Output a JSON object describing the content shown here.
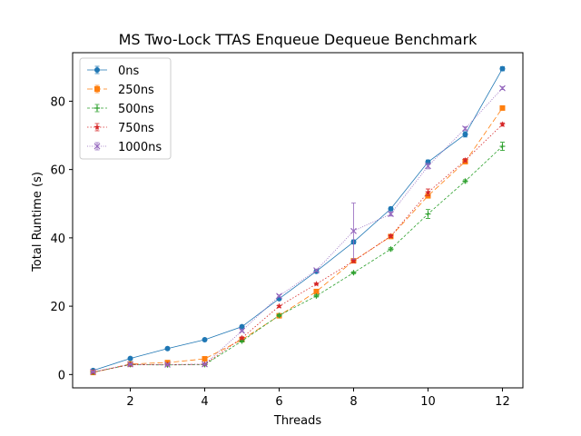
{
  "chart_data": {
    "type": "line",
    "title": "MS Two-Lock TTAS Enqueue Dequeue Benchmark",
    "xlabel": "Threads",
    "ylabel": "Total Runtime (s)",
    "xlim": [
      0.45,
      12.55
    ],
    "ylim": [
      -3.9,
      94.2
    ],
    "xticks": [
      2,
      4,
      6,
      8,
      10,
      12
    ],
    "yticks": [
      0,
      20,
      40,
      60,
      80
    ],
    "x": [
      1,
      2,
      3,
      4,
      5,
      6,
      7,
      8,
      9,
      10,
      11,
      12
    ],
    "legend_position": "upper-left",
    "series": [
      {
        "name": "0ns",
        "color": "#1f77b4",
        "marker": "circle",
        "dash": "",
        "values": [
          1.2,
          4.7,
          7.6,
          10.2,
          14.0,
          22.2,
          30.2,
          38.8,
          48.5,
          62.2,
          70.3,
          89.5
        ],
        "errors": [
          0.1,
          0.2,
          0.2,
          0.2,
          0.3,
          0.4,
          0.4,
          0.6,
          0.5,
          0.6,
          0.8,
          0.6
        ]
      },
      {
        "name": "250ns",
        "color": "#ff7f0e",
        "marker": "square",
        "dash": "6,3",
        "values": [
          0.6,
          3.1,
          3.5,
          4.6,
          10.2,
          17.2,
          24.3,
          33.3,
          40.4,
          52.3,
          62.3,
          78.0
        ],
        "errors": [
          0.1,
          0.2,
          0.2,
          0.2,
          0.3,
          0.3,
          0.5,
          0.4,
          0.5,
          0.6,
          0.6,
          0.6
        ]
      },
      {
        "name": "500ns",
        "color": "#2ca02c",
        "marker": "plus",
        "dash": "3,2",
        "values": [
          0.7,
          2.9,
          2.8,
          2.9,
          9.8,
          17.3,
          23.0,
          29.8,
          36.7,
          47.0,
          56.6,
          66.8
        ],
        "errors": [
          0.1,
          0.2,
          0.2,
          0.2,
          0.3,
          0.3,
          0.3,
          0.3,
          0.4,
          1.3,
          0.4,
          1.2
        ]
      },
      {
        "name": "750ns",
        "color": "#d62728",
        "marker": "star",
        "dash": "1.5,2",
        "values": [
          0.7,
          2.9,
          2.9,
          3.0,
          10.7,
          20.0,
          26.5,
          33.2,
          40.5,
          53.3,
          62.7,
          73.2
        ],
        "errors": [
          0.1,
          0.2,
          0.2,
          0.2,
          0.3,
          0.3,
          0.3,
          0.4,
          0.4,
          1.0,
          0.5,
          0.5
        ]
      },
      {
        "name": "1000ns",
        "color": "#9467bd",
        "marker": "x",
        "dash": "1,1.5",
        "values": [
          0.8,
          3.0,
          2.9,
          3.0,
          12.8,
          23.0,
          30.5,
          42.0,
          47.0,
          61.0,
          72.0,
          83.8
        ],
        "errors": [
          0.1,
          0.2,
          0.2,
          0.2,
          0.3,
          0.3,
          0.3,
          8.2,
          0.6,
          0.8,
          0.5,
          0.4
        ]
      }
    ]
  }
}
